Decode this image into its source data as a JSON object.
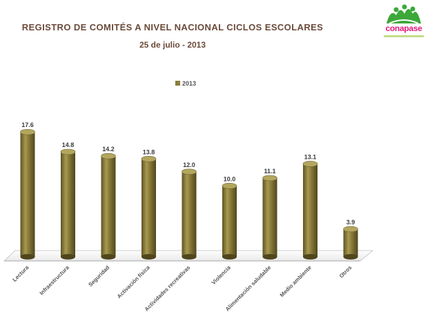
{
  "page": {
    "title": "REGISTRO DE  COMITÉS A NIVEL NACIONAL  CICLOS ESCOLARES",
    "subtitle": "25 de julio - 2013",
    "logo_text": "conapase"
  },
  "colors": {
    "bar": "#8b7d3a",
    "bar_light": "#c9bd72",
    "bar_dark": "#5e5324",
    "title": "#6b4a3a",
    "logo_pink": "#e2197c",
    "logo_green": "#3ca83a"
  },
  "chart_data": {
    "type": "bar",
    "title": "REGISTRO DE  COMITÉS A NIVEL NACIONAL  CICLOS ESCOLARES",
    "subtitle": "25 de julio - 2013",
    "categories": [
      "Lectura",
      "Infraestructura",
      "Seguridad",
      "Activación física",
      "Actividades recreativas",
      "Violencia",
      "Alimentación saludable",
      "Medio ambiente",
      "Otros"
    ],
    "series": [
      {
        "name": "2013",
        "values": [
          17.6,
          14.8,
          14.2,
          13.8,
          12.0,
          10.0,
          11.1,
          13.1,
          3.9
        ]
      }
    ],
    "value_labels": [
      "17.6",
      "14.8",
      "14.2",
      "13.8",
      "12.0",
      "10.0",
      "11.1",
      "13.1",
      "3.9"
    ],
    "ylim": [
      0,
      18.5
    ],
    "grid": false,
    "legend_position": "top-center"
  }
}
